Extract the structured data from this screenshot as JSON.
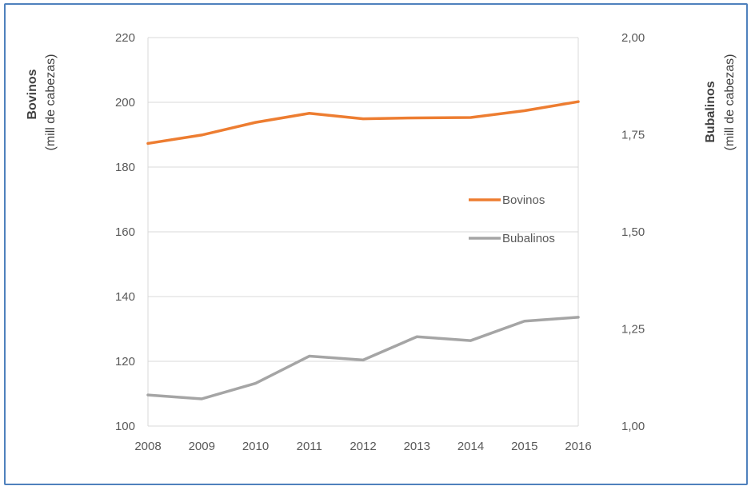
{
  "chart_data": {
    "type": "line",
    "x": [
      "2008",
      "2009",
      "2010",
      "2011",
      "2012",
      "2013",
      "2014",
      "2015",
      "2016"
    ],
    "series": [
      {
        "name": "Bovinos",
        "axis": "left",
        "color": "#ed7d31",
        "values": [
          187.3,
          189.9,
          193.8,
          196.6,
          194.9,
          195.2,
          195.3,
          197.4,
          200.2
        ]
      },
      {
        "name": "Bubalinos",
        "axis": "right",
        "color": "#a5a5a5",
        "values": [
          1.08,
          1.07,
          1.11,
          1.18,
          1.17,
          1.23,
          1.22,
          1.27,
          1.28
        ]
      }
    ],
    "left_axis": {
      "title": "Bovinos",
      "subtitle": "(mill de cabezas)",
      "ylim": [
        100,
        220
      ],
      "ticks": [
        "100",
        "120",
        "140",
        "160",
        "180",
        "200",
        "220"
      ],
      "tick_values": [
        100,
        120,
        140,
        160,
        180,
        200,
        220
      ]
    },
    "right_axis": {
      "title": "Bubalinos",
      "subtitle": "(mill de cabezas)",
      "ylim": [
        1.0,
        2.0
      ],
      "ticks": [
        "1,00",
        "1,25",
        "1,50",
        "1,75",
        "2,00"
      ],
      "tick_values": [
        1.0,
        1.25,
        1.5,
        1.75,
        2.0
      ]
    },
    "grid": true,
    "legend_position": "center-right"
  }
}
